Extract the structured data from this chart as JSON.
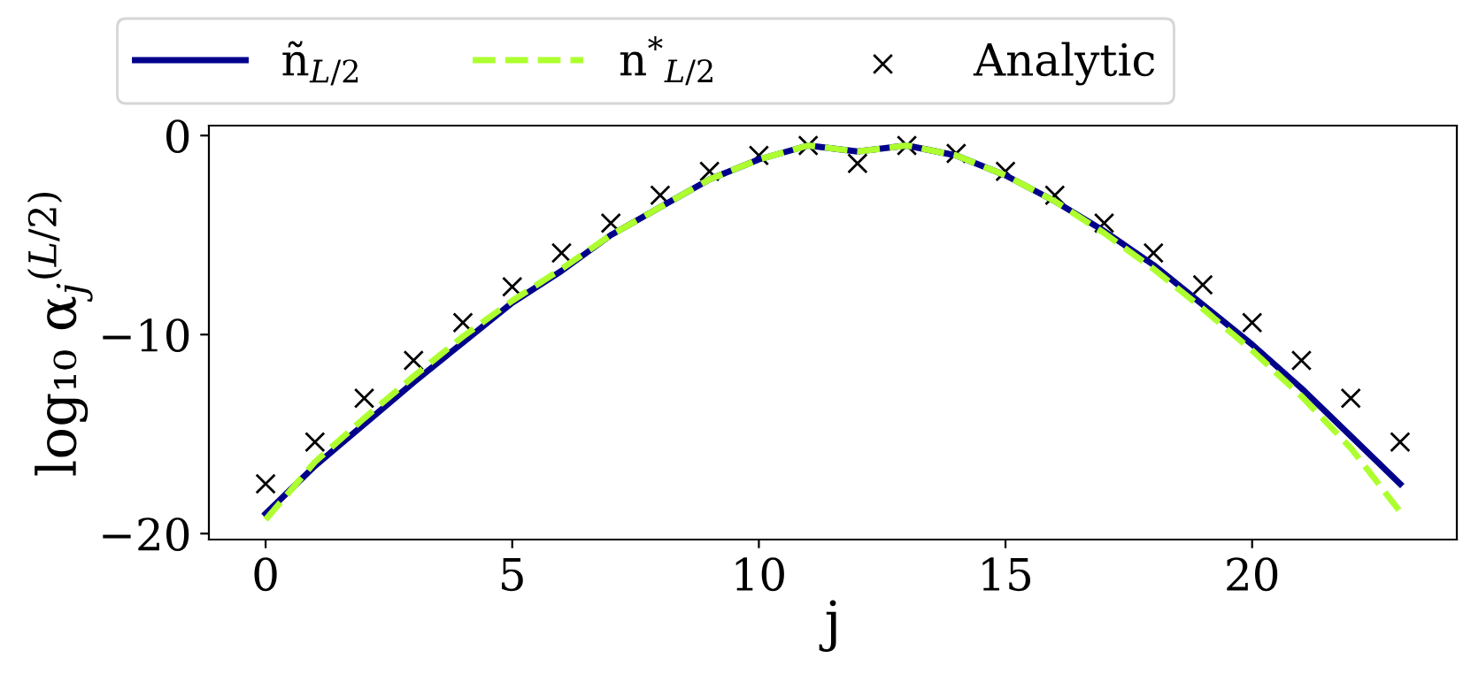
{
  "chart_data": {
    "type": "line",
    "xlabel": "j",
    "ylabel": "log₁₀ α$_{j}$$^{(L/2)}$",
    "x": [
      0,
      1,
      2,
      3,
      4,
      5,
      6,
      7,
      8,
      9,
      10,
      11,
      12,
      13,
      14,
      15,
      16,
      17,
      18,
      19,
      20,
      21,
      22,
      23
    ],
    "series": [
      {
        "name": "ñ$_{L/2}$",
        "color": "#00008b",
        "line_style": "solid",
        "marker": "none",
        "values": [
          -19.0,
          -16.6,
          -14.5,
          -12.4,
          -10.4,
          -8.4,
          -6.8,
          -5.0,
          -3.6,
          -2.2,
          -1.2,
          -0.5,
          -0.8,
          -0.5,
          -1.0,
          -2.0,
          -3.3,
          -4.8,
          -6.5,
          -8.5,
          -10.5,
          -12.7,
          -15.1,
          -17.5
        ]
      },
      {
        "name": "n$^{*}$$_{L/2}$",
        "color": "#adff2f",
        "line_style": "dashed",
        "marker": "none",
        "values": [
          -19.3,
          -16.4,
          -14.2,
          -12.1,
          -10.1,
          -8.3,
          -6.7,
          -5.0,
          -3.6,
          -2.2,
          -1.2,
          -0.5,
          -0.8,
          -0.5,
          -1.0,
          -2.0,
          -3.3,
          -4.9,
          -6.7,
          -8.7,
          -10.8,
          -13.1,
          -15.7,
          -18.9
        ]
      },
      {
        "name": "Analytic",
        "type": "scatter",
        "color": "#000000",
        "marker": "cross",
        "values": [
          -17.5,
          -15.4,
          -13.2,
          -11.3,
          -9.4,
          -7.6,
          -5.9,
          -4.4,
          -3.0,
          -1.8,
          -1.0,
          -0.5,
          -1.4,
          -0.5,
          -0.9,
          -1.8,
          -3.0,
          -4.4,
          -5.9,
          -7.5,
          -9.4,
          -11.3,
          -13.2,
          -15.4
        ]
      }
    ],
    "xlim": [
      -1.15,
      24.15
    ],
    "ylim": [
      -20.3,
      0.5
    ],
    "xticks": [
      0,
      5,
      10,
      15,
      20
    ],
    "yticks": [
      0,
      -10,
      -20
    ],
    "grid": false,
    "legend": "top"
  }
}
